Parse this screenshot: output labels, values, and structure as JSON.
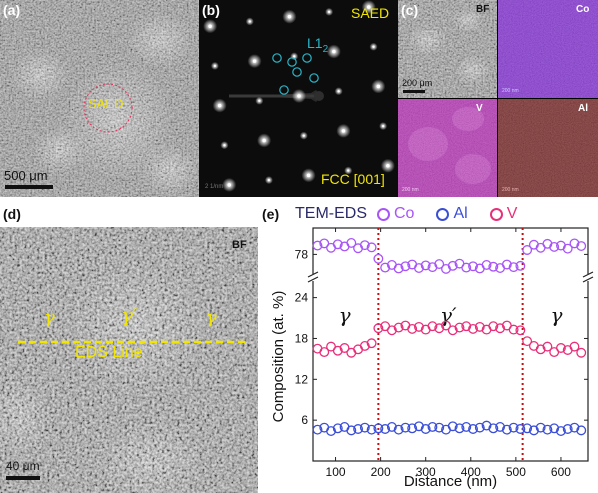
{
  "colors": {
    "co": "#a855f7",
    "al": "#3b4fd6",
    "v": "#e8307a",
    "yellow": "#f2e600",
    "cyan": "#29b6c8",
    "boundary": "#c41010",
    "text_dark": "#2a2a6a"
  },
  "panel_a": {
    "label": "(a)",
    "saed_label": "SAED",
    "scale_bar": "500 μm"
  },
  "panel_b": {
    "label": "(b)",
    "saed_label": "SAED",
    "l12_label": "L1",
    "l12_sub": "2",
    "zone_axis": "FCC [001]",
    "small_scale": "2 1/nm"
  },
  "panel_c": {
    "label": "(c)",
    "bf_label": "BF",
    "co_label": "Co",
    "v_label": "V",
    "al_label": "Al",
    "scale_bar": "200 μm",
    "small_scale": "200 nm",
    "co_color": "#7a18d8",
    "v_color": "#b41ab4",
    "al_color": "#6a0a0a"
  },
  "panel_d": {
    "label": "(d)",
    "bf_label": "BF",
    "gamma_left": "γ",
    "gamma_prime": "γ′",
    "gamma_right": "γ",
    "eds_line": "EDS Line",
    "scale_bar": "40 μm"
  },
  "panel_e": {
    "label": "(e)",
    "legend_title": "TEM-EDS",
    "legend_co": "Co",
    "legend_al": "Al",
    "legend_v": "V",
    "phase_left": "γ",
    "phase_mid": "γ′",
    "phase_right": "γ"
  },
  "chart_data": {
    "type": "scatter",
    "xlabel": "Distance (nm)",
    "ylabel": "Composition (at. %)",
    "xlim": [
      50,
      660
    ],
    "x_ticks": [
      100,
      200,
      300,
      400,
      500,
      600
    ],
    "y_ticks": [
      6,
      12,
      18,
      24,
      78
    ],
    "y_axis_break": [
      26,
      74
    ],
    "boundaries_x": [
      195,
      515
    ],
    "series": [
      {
        "name": "Co",
        "x": [
          60,
          75,
          90,
          105,
          120,
          135,
          150,
          165,
          180,
          195,
          210,
          225,
          240,
          255,
          270,
          285,
          300,
          315,
          330,
          345,
          360,
          375,
          390,
          405,
          420,
          435,
          450,
          465,
          480,
          495,
          510,
          525,
          540,
          555,
          570,
          585,
          600,
          615,
          630,
          645
        ],
        "values": [
          80,
          80.5,
          79.5,
          80.3,
          79.8,
          80.6,
          79.4,
          80.1,
          79.6,
          77,
          75,
          75.6,
          74.8,
          75.3,
          75.7,
          74.9,
          75.5,
          75.1,
          75.8,
          74.7,
          75.4,
          75.9,
          75,
          75.3,
          74.8,
          75.6,
          75.2,
          74.9,
          75.7,
          75.1,
          75.4,
          79,
          80.2,
          79.5,
          80.4,
          79.7,
          80,
          79.3,
          80.5,
          79.9
        ]
      },
      {
        "name": "Al",
        "x": [
          60,
          75,
          90,
          105,
          120,
          135,
          150,
          165,
          180,
          195,
          210,
          225,
          240,
          255,
          270,
          285,
          300,
          315,
          330,
          345,
          360,
          375,
          390,
          405,
          420,
          435,
          450,
          465,
          480,
          495,
          510,
          525,
          540,
          555,
          570,
          585,
          600,
          615,
          630,
          645
        ],
        "values": [
          4.6,
          4.9,
          4.4,
          4.8,
          5,
          4.5,
          4.7,
          4.9,
          4.6,
          4.8,
          4.7,
          5,
          4.6,
          4.9,
          4.8,
          5.1,
          4.7,
          5,
          4.9,
          4.6,
          5.1,
          4.8,
          5,
          4.7,
          4.9,
          5.2,
          4.8,
          5,
          4.6,
          4.9,
          4.7,
          4.8,
          4.5,
          4.9,
          4.6,
          4.8,
          4.4,
          4.7,
          4.9,
          4.5
        ]
      },
      {
        "name": "V",
        "x": [
          60,
          75,
          90,
          105,
          120,
          135,
          150,
          165,
          180,
          195,
          210,
          225,
          240,
          255,
          270,
          285,
          300,
          315,
          330,
          345,
          360,
          375,
          390,
          405,
          420,
          435,
          450,
          465,
          480,
          495,
          510,
          525,
          540,
          555,
          570,
          585,
          600,
          615,
          630,
          645
        ],
        "values": [
          16.5,
          16,
          16.8,
          16.2,
          16.6,
          15.9,
          16.4,
          16.9,
          17.3,
          19.5,
          19.8,
          19.2,
          19.6,
          19.9,
          19.4,
          19.7,
          19.3,
          19.8,
          19.5,
          19.9,
          19.2,
          19.6,
          19.8,
          19.4,
          19.7,
          19.3,
          19.8,
          19.5,
          19.9,
          19.3,
          19.2,
          17.6,
          16.9,
          16.4,
          16.8,
          16,
          16.6,
          16.3,
          16.8,
          15.9
        ]
      }
    ]
  }
}
